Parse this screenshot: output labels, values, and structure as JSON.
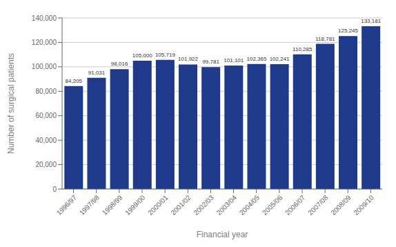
{
  "chart_data": {
    "type": "bar",
    "categories": [
      "1996/97",
      "1997/98",
      "1998/99",
      "1999/00",
      "2000/01",
      "2001/02",
      "2002/03",
      "2003/04",
      "2004/05",
      "2005/06",
      "2006/07",
      "2007/08",
      "2008/09",
      "2009/10"
    ],
    "values": [
      84205,
      91031,
      98016,
      105000,
      105719,
      101922,
      99781,
      101101,
      102365,
      102241,
      110285,
      118781,
      125245,
      133181
    ],
    "value_labels": [
      "84,205",
      "91,031",
      "98,016",
      "105,000",
      "105,719",
      "101,922",
      "99,781",
      "101,101",
      "102,365",
      "102,241",
      "110,285",
      "118,781",
      "125,245",
      "133,181"
    ],
    "data_labels": true,
    "color": "#1F3A8A",
    "xlabel": "Financial year",
    "ylabel": "Number of surgical patients",
    "ylim": [
      0,
      140000
    ],
    "yticks": [
      0,
      {
        "value": 20000,
        "label": "20,000"
      },
      {
        "value": 40000,
        "label": "40,000"
      },
      {
        "value": 60000,
        "label": "60,000"
      },
      {
        "value": 80000,
        "label": "80,000"
      },
      {
        "value": 100000,
        "label": "100,000"
      },
      {
        "value": 120000,
        "label": "120,000"
      },
      {
        "value": 140000,
        "label": "140,000"
      }
    ],
    "grid": true
  }
}
